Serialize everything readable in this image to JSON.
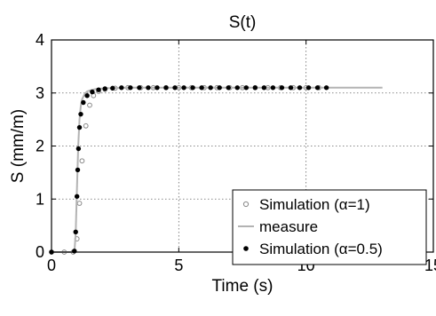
{
  "chart_data": {
    "type": "line",
    "title": "S(t)",
    "xlabel": "Time (s)",
    "ylabel": "S (mm/m)",
    "xlim": [
      0,
      15
    ],
    "ylim": [
      0,
      4
    ],
    "xticks": [
      0,
      5,
      10,
      15
    ],
    "yticks": [
      0,
      1,
      2,
      3,
      4
    ],
    "grid": true,
    "legend_position": "bottom-right",
    "series": [
      {
        "name": "Simulation (α=1)",
        "style": "open-circle",
        "color": "#888888",
        "x": [
          0,
          0.5,
          0.85,
          1.0,
          1.1,
          1.2,
          1.35,
          1.5,
          1.65,
          1.85,
          2.1,
          2.5,
          3.0,
          3.5,
          4.0,
          4.5,
          5.0,
          5.5,
          6.0,
          6.5,
          7.0,
          7.5,
          8.0,
          8.5,
          9.0,
          9.5,
          10.0,
          10.5
        ],
        "y": [
          0,
          0,
          0,
          0.25,
          0.92,
          1.72,
          2.38,
          2.77,
          2.95,
          3.03,
          3.07,
          3.09,
          3.1,
          3.1,
          3.1,
          3.1,
          3.1,
          3.1,
          3.1,
          3.1,
          3.1,
          3.1,
          3.1,
          3.1,
          3.1,
          3.1,
          3.1,
          3.1
        ]
      },
      {
        "name": "measure",
        "style": "line",
        "color": "#b3b3b3",
        "x": [
          0,
          0.9,
          0.95,
          1.0,
          1.05,
          1.1,
          1.15,
          1.2,
          1.3,
          1.4,
          1.6,
          1.8,
          2.2,
          3.0,
          5.0,
          8.0,
          11.0,
          13.0
        ],
        "y": [
          0,
          0,
          0.35,
          1.2,
          2.0,
          2.5,
          2.75,
          2.88,
          2.98,
          3.03,
          3.06,
          3.08,
          3.09,
          3.1,
          3.1,
          3.1,
          3.1,
          3.1
        ]
      },
      {
        "name": "Simulation (α=0.5)",
        "style": "filled-circle",
        "color": "#000000",
        "x": [
          0,
          0.9,
          0.95,
          1.0,
          1.03,
          1.06,
          1.1,
          1.15,
          1.25,
          1.4,
          1.6,
          1.85,
          2.1,
          2.4,
          2.75,
          3.1,
          3.45,
          3.8,
          4.15,
          4.5,
          4.85,
          5.2,
          5.55,
          5.9,
          6.25,
          6.6,
          6.95,
          7.3,
          7.65,
          8.0,
          8.35,
          8.7,
          9.05,
          9.4,
          9.75,
          10.1,
          10.45,
          10.8
        ],
        "y": [
          0,
          0.02,
          0.38,
          1.05,
          1.55,
          1.95,
          2.35,
          2.6,
          2.82,
          2.95,
          3.02,
          3.06,
          3.08,
          3.09,
          3.1,
          3.1,
          3.1,
          3.1,
          3.1,
          3.1,
          3.1,
          3.1,
          3.1,
          3.1,
          3.1,
          3.1,
          3.1,
          3.1,
          3.1,
          3.1,
          3.1,
          3.1,
          3.1,
          3.1,
          3.1,
          3.1,
          3.1,
          3.1
        ]
      }
    ]
  }
}
